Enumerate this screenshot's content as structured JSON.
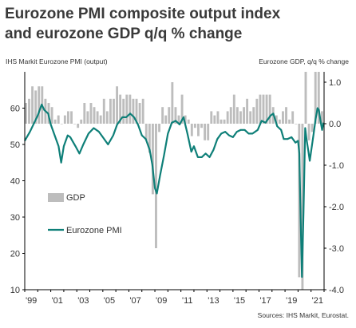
{
  "title_line1": "Eurozone PMI composite output index",
  "title_line2": "and eurozone GDP q/q % change",
  "source": "Sources: IHS Markit, Eurostat.",
  "colors": {
    "pmi": "#0e7f78",
    "gdp": "#bdbdbd",
    "title": "#3a3a3a",
    "text": "#333333",
    "axis": "#000000"
  },
  "chart_data": {
    "type": "bar+line",
    "left_axis_label": "IHS Markit Eurozone PMI (output)",
    "right_axis_label": "Eurozone GDP, q/q % change",
    "left_ylim": [
      10,
      70
    ],
    "left_ticks": [
      10,
      20,
      30,
      40,
      50,
      60
    ],
    "right_ylim": [
      -4.0,
      1.25
    ],
    "right_ticks": [
      -4.0,
      -3.0,
      -2.0,
      -1.0,
      0.0,
      1.0
    ],
    "right_tick_labels": [
      "-4.0",
      "-3.0",
      "-2.0",
      "-1.0",
      "0.0",
      "1.0"
    ],
    "xlim": [
      1999.0,
      2022.0
    ],
    "x_tick_labels": [
      "'99",
      "'01",
      "'03",
      "'05",
      "'07",
      "'09",
      "'11",
      "'13",
      "'15",
      "'17",
      "'19",
      "'21"
    ],
    "x_tick_years": [
      1999,
      2001,
      2003,
      2005,
      2007,
      2009,
      2011,
      2013,
      2015,
      2017,
      2019,
      2021
    ],
    "legend": [
      {
        "name": "GDP",
        "kind": "bar"
      },
      {
        "name": "Eurozone PMI",
        "kind": "line"
      }
    ],
    "series": [
      {
        "name": "GDP",
        "axis": "right",
        "quarter_start": 1999.0,
        "values": [
          0.5,
          0.6,
          0.9,
          0.8,
          0.9,
          0.9,
          0.6,
          0.5,
          0.4,
          0.1,
          0.2,
          0.0,
          0.2,
          0.3,
          0.3,
          0.0,
          -0.1,
          0.1,
          0.5,
          0.3,
          0.5,
          0.4,
          0.3,
          0.2,
          0.6,
          0.3,
          0.6,
          0.6,
          0.9,
          0.7,
          0.6,
          0.7,
          0.7,
          0.6,
          0.6,
          0.5,
          0.6,
          -0.4,
          -0.7,
          -1.7,
          -3.0,
          -0.2,
          0.4,
          0.2,
          0.4,
          1.0,
          0.4,
          0.2,
          0.7,
          0.2,
          0.1,
          -0.3,
          -0.1,
          -0.3,
          -0.1,
          -0.4,
          -0.4,
          0.3,
          0.2,
          0.3,
          0.1,
          0.1,
          0.3,
          0.4,
          0.7,
          0.4,
          0.3,
          0.4,
          0.6,
          0.3,
          0.4,
          0.6,
          0.7,
          0.7,
          0.7,
          0.7,
          0.4,
          0.2,
          0.1,
          0.3,
          0.4,
          0.1,
          0.3,
          0.0,
          -3.7,
          -11.6,
          12.5,
          -0.4,
          -0.2,
          2.2,
          2.2,
          0.3
        ]
      },
      {
        "name": "Eurozone PMI",
        "axis": "left",
        "points": [
          [
            1999.0,
            51.0
          ],
          [
            1999.4,
            53.5
          ],
          [
            1999.8,
            56.5
          ],
          [
            2000.0,
            58.0
          ],
          [
            2000.3,
            61.0
          ],
          [
            2000.5,
            59.5
          ],
          [
            2000.8,
            58.5
          ],
          [
            2001.0,
            55.5
          ],
          [
            2001.3,
            52.5
          ],
          [
            2001.6,
            49.5
          ],
          [
            2001.8,
            45.0
          ],
          [
            2002.0,
            49.5
          ],
          [
            2002.3,
            52.5
          ],
          [
            2002.5,
            52.0
          ],
          [
            2002.9,
            49.5
          ],
          [
            2003.2,
            47.5
          ],
          [
            2003.5,
            50.0
          ],
          [
            2003.9,
            53.0
          ],
          [
            2004.3,
            54.5
          ],
          [
            2004.7,
            53.5
          ],
          [
            2005.0,
            52.0
          ],
          [
            2005.4,
            50.0
          ],
          [
            2005.8,
            52.5
          ],
          [
            2006.1,
            55.5
          ],
          [
            2006.5,
            57.5
          ],
          [
            2006.8,
            57.5
          ],
          [
            2007.1,
            58.5
          ],
          [
            2007.4,
            57.5
          ],
          [
            2007.7,
            55.5
          ],
          [
            2008.0,
            52.5
          ],
          [
            2008.3,
            51.5
          ],
          [
            2008.6,
            48.5
          ],
          [
            2008.8,
            44.5
          ],
          [
            2009.0,
            38.0
          ],
          [
            2009.15,
            36.5
          ],
          [
            2009.4,
            41.5
          ],
          [
            2009.7,
            47.0
          ],
          [
            2010.0,
            53.0
          ],
          [
            2010.3,
            56.0
          ],
          [
            2010.6,
            56.5
          ],
          [
            2010.9,
            55.5
          ],
          [
            2011.2,
            57.5
          ],
          [
            2011.5,
            53.0
          ],
          [
            2011.8,
            48.0
          ],
          [
            2012.0,
            49.5
          ],
          [
            2012.3,
            46.5
          ],
          [
            2012.6,
            46.5
          ],
          [
            2012.9,
            47.5
          ],
          [
            2013.2,
            46.5
          ],
          [
            2013.5,
            48.5
          ],
          [
            2013.8,
            51.5
          ],
          [
            2014.1,
            53.0
          ],
          [
            2014.4,
            53.5
          ],
          [
            2014.7,
            52.5
          ],
          [
            2015.0,
            52.0
          ],
          [
            2015.3,
            53.5
          ],
          [
            2015.6,
            54.0
          ],
          [
            2015.9,
            54.0
          ],
          [
            2016.2,
            53.0
          ],
          [
            2016.5,
            53.0
          ],
          [
            2016.9,
            54.0
          ],
          [
            2017.2,
            56.5
          ],
          [
            2017.5,
            56.0
          ],
          [
            2017.9,
            58.0
          ],
          [
            2018.1,
            58.5
          ],
          [
            2018.4,
            55.0
          ],
          [
            2018.7,
            54.0
          ],
          [
            2018.9,
            51.5
          ],
          [
            2019.2,
            51.5
          ],
          [
            2019.5,
            52.0
          ],
          [
            2019.8,
            50.5
          ],
          [
            2020.0,
            51.0
          ],
          [
            2020.1,
            47.5
          ],
          [
            2020.2,
            29.5
          ],
          [
            2020.3,
            13.5
          ],
          [
            2020.42,
            31.5
          ],
          [
            2020.55,
            54.5
          ],
          [
            2020.65,
            51.5
          ],
          [
            2020.8,
            48.0
          ],
          [
            2020.9,
            45.5
          ],
          [
            2021.0,
            48.0
          ],
          [
            2021.2,
            53.0
          ],
          [
            2021.35,
            57.0
          ],
          [
            2021.5,
            60.0
          ],
          [
            2021.6,
            59.5
          ],
          [
            2021.75,
            56.0
          ],
          [
            2021.85,
            54.0
          ],
          [
            2021.95,
            56.0
          ]
        ]
      }
    ]
  }
}
